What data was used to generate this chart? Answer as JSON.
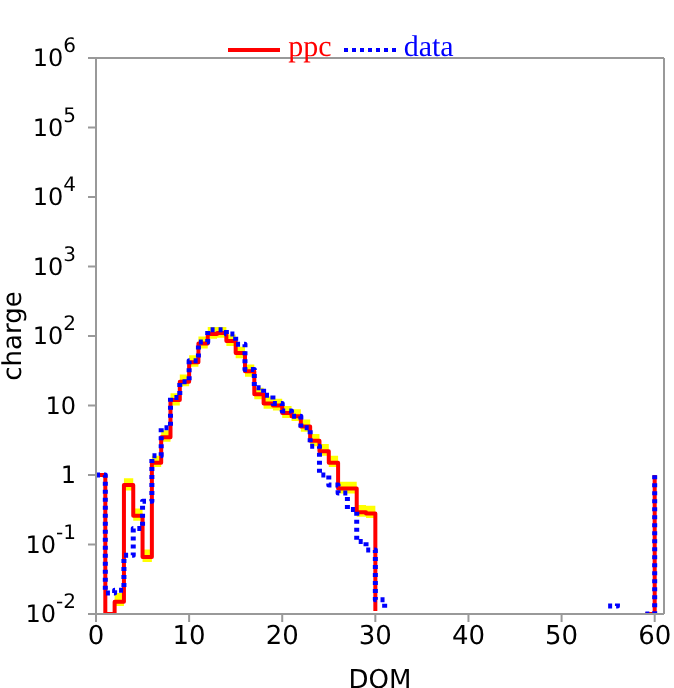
{
  "chart_data": {
    "type": "step",
    "xlabel": "DOM",
    "ylabel": "charge",
    "log": "y",
    "legend": "top",
    "grid": false,
    "x": [
      0,
      1,
      2,
      3,
      4,
      5,
      6,
      7,
      8,
      9,
      10,
      11,
      12,
      13,
      14,
      15,
      16,
      17,
      18,
      19,
      20,
      21,
      22,
      23,
      24,
      25,
      26,
      27,
      28,
      29,
      30,
      31,
      32,
      33,
      34,
      35,
      36,
      37,
      38,
      39,
      40,
      41,
      42,
      43,
      44,
      45,
      46,
      47,
      48,
      49,
      50,
      51,
      52,
      53,
      54,
      55,
      56,
      57,
      58,
      59,
      60
    ],
    "xlim": [
      0,
      61
    ],
    "xticks": [
      0,
      10,
      20,
      30,
      40,
      50,
      60
    ],
    "ylim": [
      0.01,
      1000000
    ],
    "yticks": [
      {
        "value": 0.01,
        "label": "10$^{-2}$"
      },
      {
        "value": 0.1,
        "label": "10$^{-1}$"
      },
      1,
      10,
      {
        "value": 100,
        "label": "10$^{2}$"
      },
      {
        "value": 1000,
        "label": "10$^{3}$"
      },
      {
        "value": 10000,
        "label": "10$^{4}$"
      },
      {
        "value": 100000,
        "label": "10$^{5}$"
      },
      {
        "value": 1000000,
        "label": "10$^{6}$"
      }
    ],
    "series": [
      {
        "name": "ppc",
        "color": "#ff0000",
        "line_style": "solid",
        "values": [
          1,
          0.01,
          0.015,
          0.72,
          0.26,
          0.066,
          1.5,
          3.5,
          12,
          22,
          42,
          78,
          107,
          110,
          85,
          57,
          31,
          14.5,
          10.7,
          10,
          7.8,
          7,
          5,
          3.1,
          2.2,
          1.5,
          0.64,
          0.64,
          0.29,
          0.28,
          0.011,
          null,
          null,
          null,
          null,
          null,
          null,
          null,
          null,
          null,
          null,
          null,
          null,
          null,
          null,
          null,
          null,
          null,
          null,
          null,
          null,
          null,
          null,
          null,
          null,
          null,
          null,
          null,
          null,
          0.01,
          1
        ],
        "upper": [
          null,
          null,
          0.02,
          0.9,
          0.33,
          0.085,
          1.9,
          4.4,
          15,
          28,
          53,
          98,
          135,
          135,
          105,
          70,
          39,
          18,
          13.5,
          12.5,
          9.8,
          8.8,
          6.3,
          3.9,
          2.8,
          1.9,
          0.8,
          0.8,
          0.37,
          0.36,
          0.014,
          null,
          null,
          null,
          null,
          null,
          null,
          null,
          null,
          null,
          null,
          null,
          null,
          null,
          null,
          null,
          null,
          null,
          null,
          null,
          null,
          null,
          null,
          null,
          null,
          null,
          null,
          null,
          null,
          null,
          null
        ],
        "lower": [
          null,
          null,
          0.013,
          0.6,
          0.22,
          0.056,
          1.3,
          3,
          10,
          19,
          36,
          66,
          91,
          94,
          72,
          48,
          26,
          12.3,
          9,
          8.5,
          6.6,
          6,
          4.2,
          2.6,
          1.9,
          1.3,
          0.54,
          0.54,
          0.25,
          0.24,
          0.01,
          null,
          null,
          null,
          null,
          null,
          null,
          null,
          null,
          null,
          null,
          null,
          null,
          null,
          null,
          null,
          null,
          null,
          null,
          null,
          null,
          null,
          null,
          null,
          null,
          null,
          null,
          null,
          null,
          null,
          null
        ]
      },
      {
        "name": "data",
        "color": "#0000ff",
        "line_style": "dotted",
        "values": [
          1,
          0.02,
          0.022,
          0.07,
          0.17,
          0.42,
          1.9,
          4.8,
          13,
          22,
          44,
          82,
          123,
          123,
          107,
          76,
          33,
          18,
          14,
          10.7,
          8.3,
          7,
          4.8,
          2.6,
          1,
          0.72,
          0.55,
          0.32,
          0.11,
          0.083,
          0.016,
          0.012,
          null,
          null,
          null,
          null,
          null,
          null,
          null,
          null,
          null,
          null,
          null,
          null,
          null,
          null,
          null,
          null,
          null,
          null,
          null,
          null,
          null,
          null,
          null,
          0.013,
          0.015,
          null,
          null,
          0.01,
          1
        ]
      }
    ]
  }
}
